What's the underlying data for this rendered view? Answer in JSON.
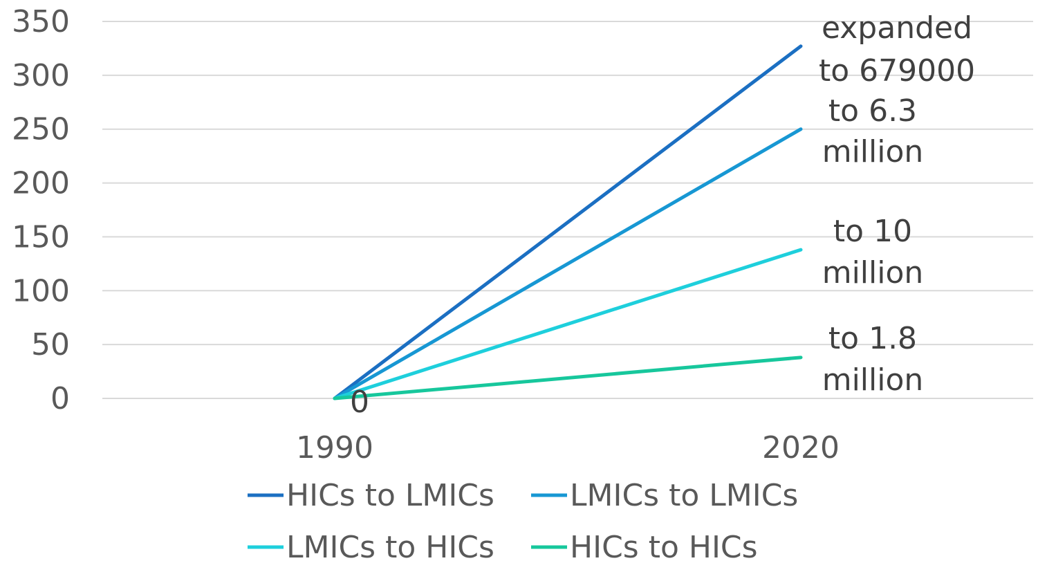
{
  "chart_data": {
    "type": "line",
    "categories": [
      "1990",
      "2020"
    ],
    "ylim": [
      0,
      350
    ],
    "yticks": [
      "0",
      "50",
      "100",
      "150",
      "200",
      "250",
      "300",
      "350"
    ],
    "grid": true,
    "legend_position": "bottom",
    "series": [
      {
        "name": "HICs to LMICs",
        "values": [
          0,
          327
        ],
        "color": "#1b6fc2",
        "annotation": [
          "expanded",
          "to 679000"
        ]
      },
      {
        "name": "LMICs to LMICs",
        "values": [
          0,
          250
        ],
        "color": "#1797d3",
        "annotation": [
          "to 6.3",
          "million"
        ]
      },
      {
        "name": "LMICs to HICs",
        "values": [
          0,
          138
        ],
        "color": "#1ecfdc",
        "annotation": [
          "to 10",
          "million"
        ]
      },
      {
        "name": "HICs to HICs",
        "values": [
          0,
          38
        ],
        "color": "#17c79c",
        "annotation": [
          "to 1.8",
          "million"
        ]
      }
    ],
    "point_label": "0"
  }
}
